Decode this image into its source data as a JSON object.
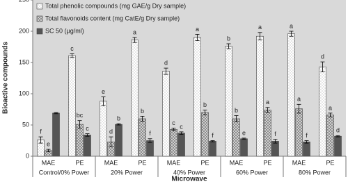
{
  "chart_data": {
    "type": "bar",
    "y_label": "Bioactive compounds",
    "x_label": "Microwave",
    "categories": [
      "MAE",
      "PE",
      "MAE",
      "PE",
      "MAE",
      "PE",
      "MAE",
      "PE",
      "MAE",
      "PE"
    ],
    "groups": [
      "Control/0% Power",
      "20% Power",
      "40% Power",
      "60% Power",
      "80% Power"
    ],
    "ylim": [
      0,
      250
    ],
    "yticks": [
      0,
      50,
      100,
      150,
      200,
      250
    ],
    "legend": "top-left",
    "series": [
      {
        "name": "Total phenolic compounds (mg GAE/g Dry sample)",
        "color": "#ffffff",
        "values": [
          26,
          161,
          88,
          186,
          136,
          190,
          176,
          192,
          196,
          143
        ],
        "errors": [
          5,
          3,
          7,
          4,
          5,
          5,
          4,
          6,
          4,
          8
        ],
        "letters": [
          "f",
          "c",
          "e",
          "a",
          "d",
          "a",
          "b",
          "a",
          "a",
          "d"
        ]
      },
      {
        "name": "Total flavonoids content (mg CatE/g Dry sample)",
        "color": "#8c8c8c",
        "values": [
          9,
          51,
          23,
          60,
          43,
          70,
          60,
          74,
          76,
          66
        ],
        "errors": [
          2,
          6,
          8,
          4,
          2,
          4,
          5,
          4,
          7,
          3
        ],
        "letters": [
          "e",
          "bc",
          "d",
          "b",
          "c",
          "b",
          "b",
          "a",
          "a",
          "a"
        ]
      },
      {
        "name": "SC 50 (µg/ml)",
        "color": "#555555",
        "values": [
          69,
          34,
          51,
          25,
          37,
          24,
          28,
          24,
          23,
          32
        ],
        "errors": [
          1,
          2,
          1,
          3,
          2,
          1,
          1,
          3,
          2,
          1
        ],
        "letters": [
          null,
          "c",
          "b",
          "f",
          "c",
          "f",
          "e",
          "f",
          "f",
          "d"
        ]
      }
    ]
  }
}
